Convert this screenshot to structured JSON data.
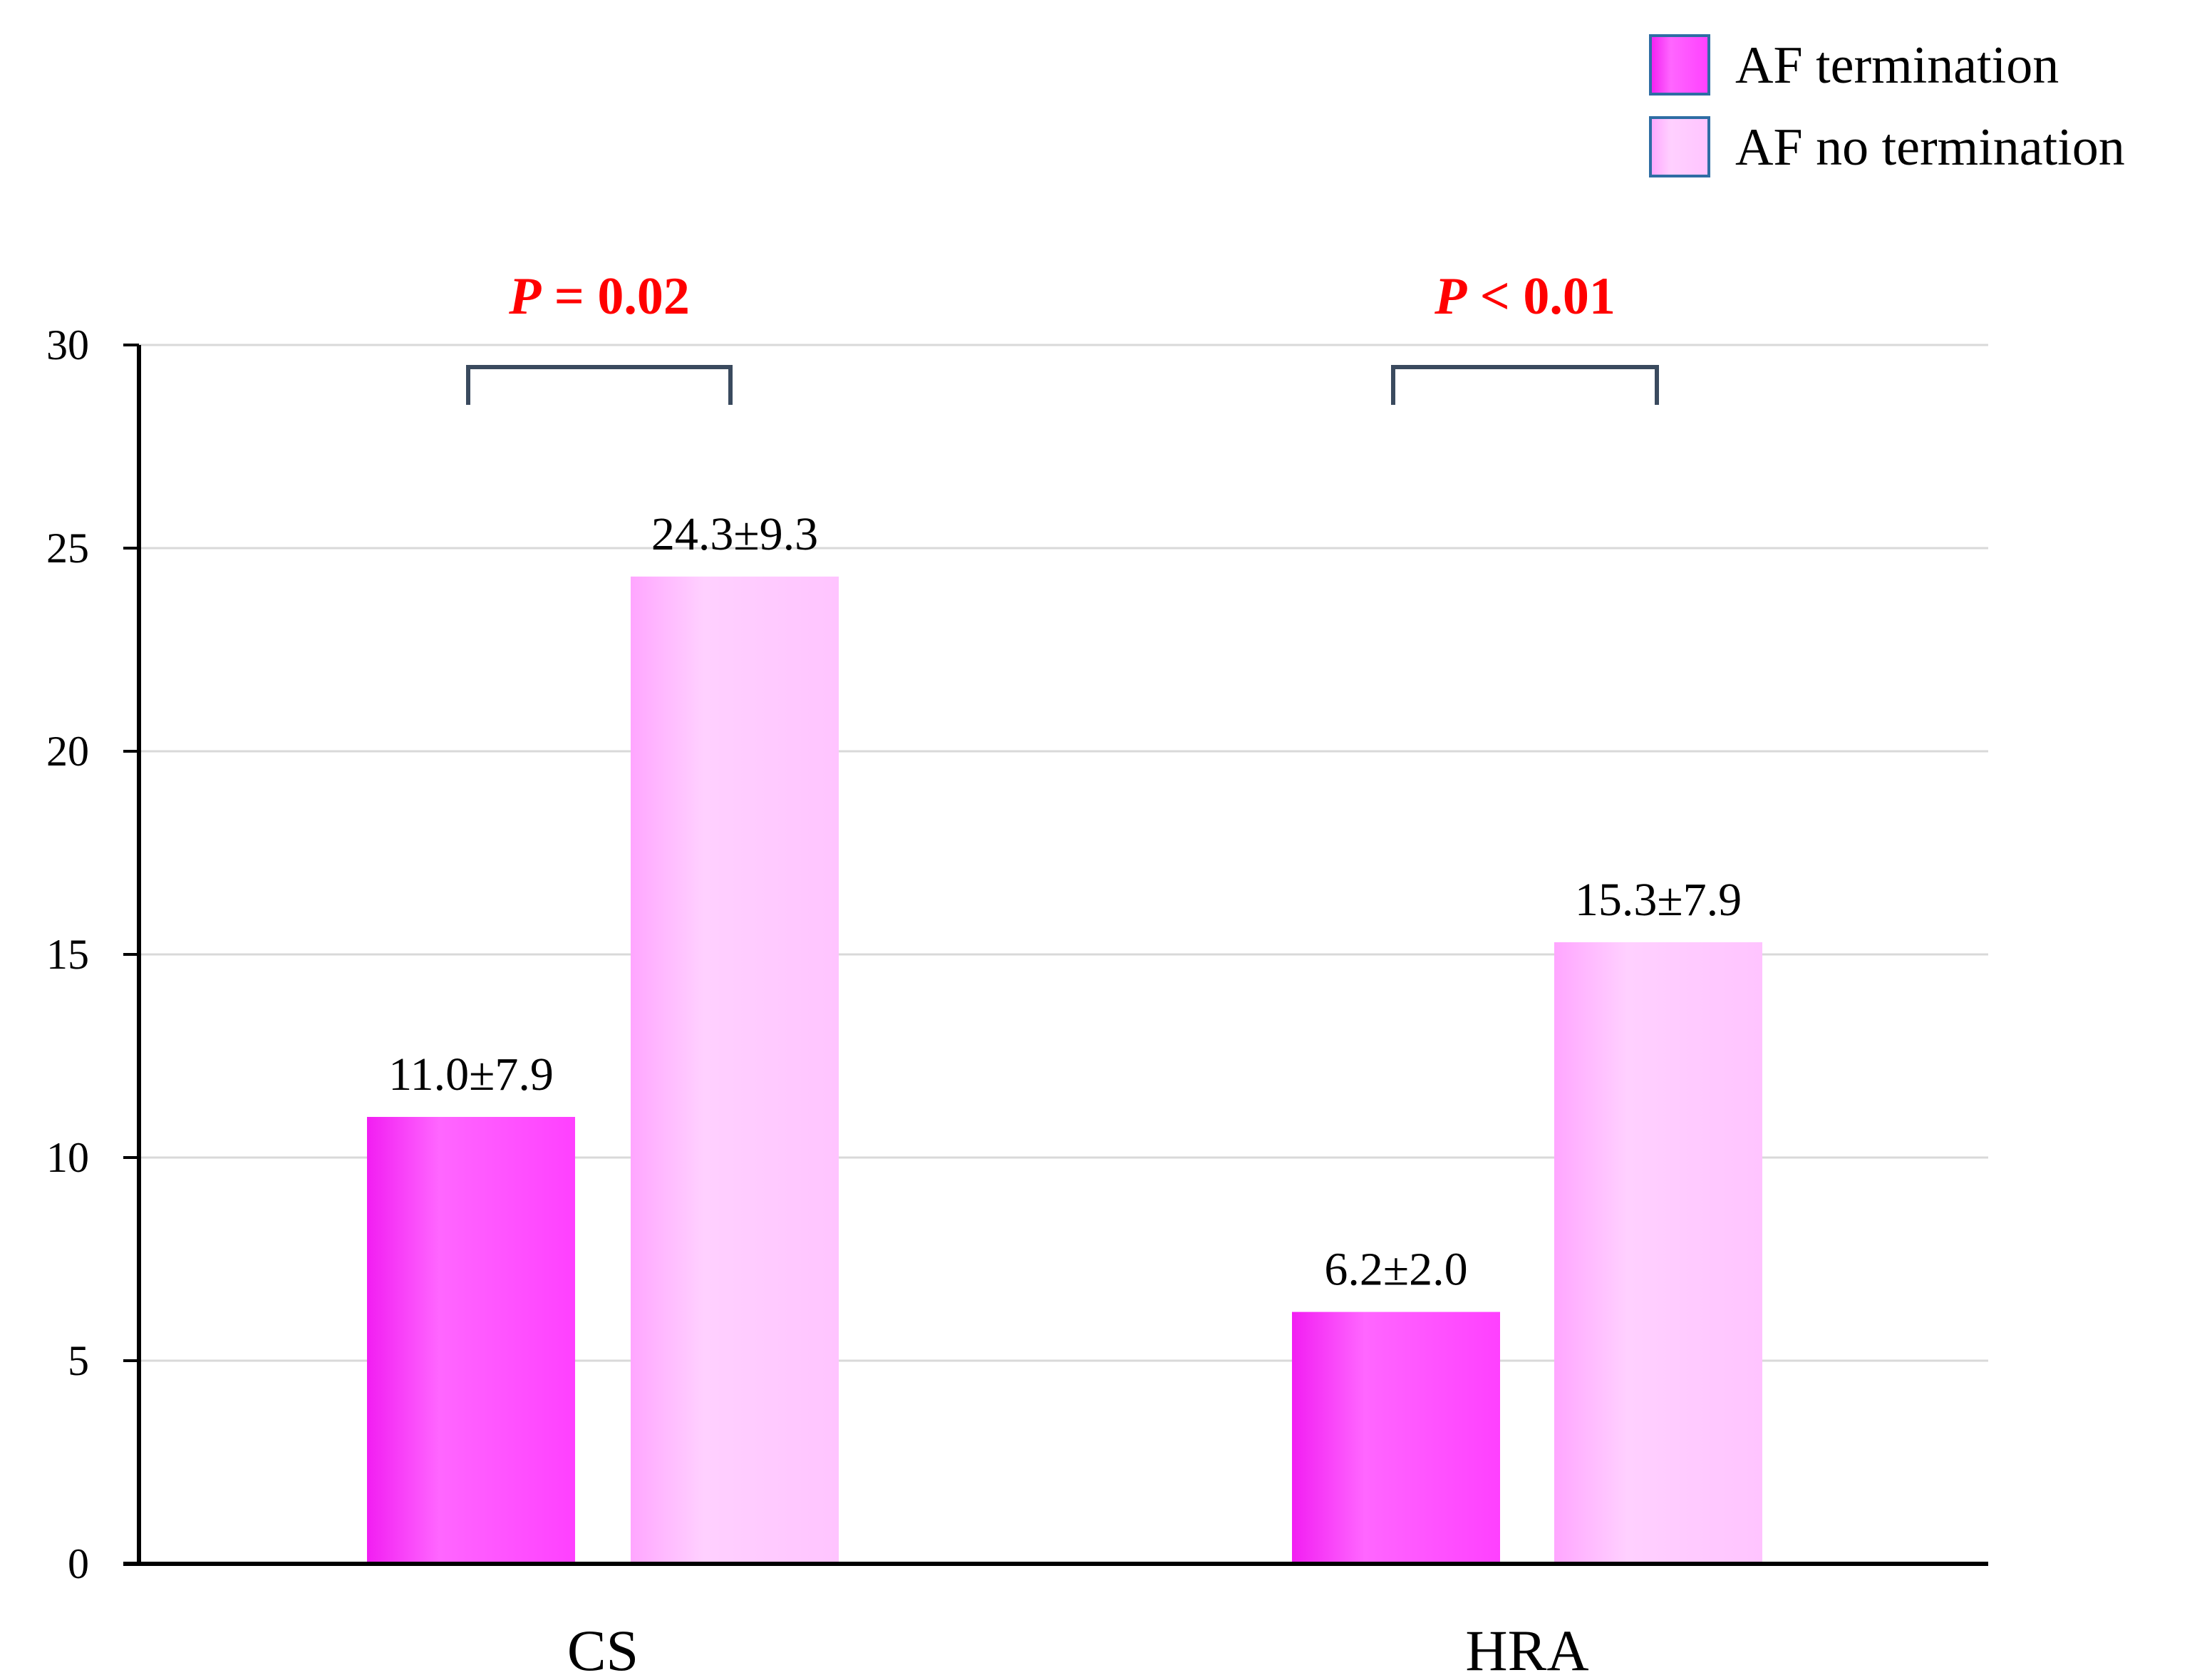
{
  "chart_data": {
    "type": "bar",
    "title": "",
    "xlabel": "",
    "ylabel": "",
    "ylim": [
      0,
      30
    ],
    "yticks": [
      0,
      5,
      10,
      15,
      20,
      25,
      30
    ],
    "categories": [
      "CS",
      "HRA"
    ],
    "series": [
      {
        "name": "AF termination",
        "values": [
          11.0,
          6.2
        ],
        "labels": [
          "11.0±7.9",
          "6.2±2.0"
        ],
        "color": "#ff44ff"
      },
      {
        "name": "AF no termination",
        "values": [
          24.3,
          15.3
        ],
        "labels": [
          "24.3±9.3",
          "15.3±7.9"
        ],
        "color": "#ffc8ff"
      }
    ],
    "significance": [
      {
        "category": "CS",
        "prefix": "P",
        "rest": " = 0.02"
      },
      {
        "category": "HRA",
        "prefix": "P",
        "rest": " < 0.01"
      }
    ],
    "grid": true,
    "legend_position": "top-right"
  },
  "colors": {
    "pval": "#ff0000",
    "bracket": "#3a4a5e",
    "grid": "#d9d9d9",
    "axis": "#000000",
    "legend_border": "#2e6da4"
  }
}
